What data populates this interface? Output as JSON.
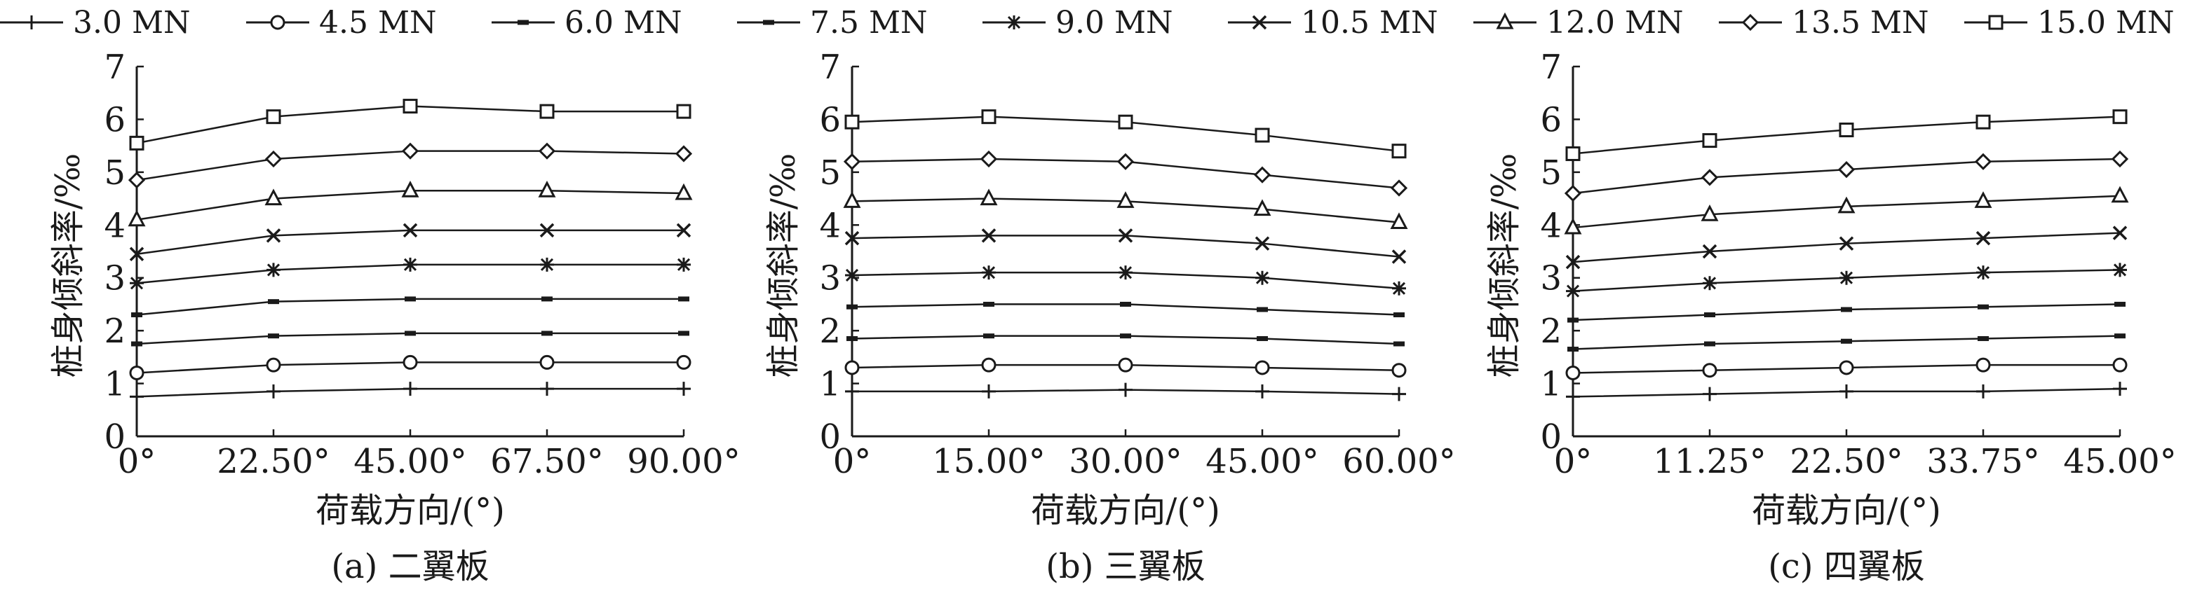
{
  "legend": {
    "entries": [
      {
        "name": "3.0 MN",
        "marker": "plus"
      },
      {
        "name": "4.5 MN",
        "marker": "circle"
      },
      {
        "name": "6.0 MN",
        "marker": "dash"
      },
      {
        "name": "7.5 MN",
        "marker": "dash"
      },
      {
        "name": "9.0 MN",
        "marker": "asterisk"
      },
      {
        "name": "10.5 MN",
        "marker": "cross"
      },
      {
        "name": "12.0 MN",
        "marker": "triangle"
      },
      {
        "name": "13.5 MN",
        "marker": "diamond"
      },
      {
        "name": "15.0 MN",
        "marker": "square"
      }
    ]
  },
  "chart_data": [
    {
      "type": "line",
      "caption": "(a) 二翼板",
      "xlabel": "荷载方向/(°)",
      "ylabel": "桩身倾斜率/‰",
      "categories": [
        "0°",
        "22.50°",
        "45.00°",
        "67.50°",
        "90.00°"
      ],
      "x": [
        0,
        22.5,
        45,
        67.5,
        90
      ],
      "xlim": [
        0,
        90
      ],
      "ylim": [
        0,
        7
      ],
      "yticks": [
        "0",
        "1",
        "2",
        "3",
        "4",
        "5",
        "6",
        "7"
      ],
      "grid": false,
      "series": [
        {
          "name": "3.0 MN",
          "values": [
            0.75,
            0.85,
            0.9,
            0.9,
            0.9
          ]
        },
        {
          "name": "4.5 MN",
          "values": [
            1.2,
            1.35,
            1.4,
            1.4,
            1.4
          ]
        },
        {
          "name": "6.0 MN",
          "values": [
            1.75,
            1.9,
            1.95,
            1.95,
            1.95
          ]
        },
        {
          "name": "7.5 MN",
          "values": [
            2.3,
            2.55,
            2.6,
            2.6,
            2.6
          ]
        },
        {
          "name": "9.0 MN",
          "values": [
            2.9,
            3.15,
            3.25,
            3.25,
            3.25
          ]
        },
        {
          "name": "10.5 MN",
          "values": [
            3.45,
            3.8,
            3.9,
            3.9,
            3.9
          ]
        },
        {
          "name": "12.0 MN",
          "values": [
            4.1,
            4.5,
            4.65,
            4.65,
            4.6
          ]
        },
        {
          "name": "13.5 MN",
          "values": [
            4.85,
            5.25,
            5.4,
            5.4,
            5.35
          ]
        },
        {
          "name": "15.0 MN",
          "values": [
            5.55,
            6.05,
            6.25,
            6.15,
            6.15
          ]
        }
      ]
    },
    {
      "type": "line",
      "caption": "(b) 三翼板",
      "xlabel": "荷载方向/(°)",
      "ylabel": "桩身倾斜率/‰",
      "categories": [
        "0°",
        "15.00°",
        "30.00°",
        "45.00°",
        "60.00°"
      ],
      "x": [
        0,
        15,
        30,
        45,
        60
      ],
      "xlim": [
        0,
        60
      ],
      "ylim": [
        0,
        7
      ],
      "yticks": [
        "0",
        "1",
        "2",
        "3",
        "4",
        "5",
        "6",
        "7"
      ],
      "grid": false,
      "series": [
        {
          "name": "3.0 MN",
          "values": [
            0.85,
            0.85,
            0.88,
            0.85,
            0.8
          ]
        },
        {
          "name": "4.5 MN",
          "values": [
            1.3,
            1.35,
            1.35,
            1.3,
            1.25
          ]
        },
        {
          "name": "6.0 MN",
          "values": [
            1.85,
            1.9,
            1.9,
            1.85,
            1.75
          ]
        },
        {
          "name": "7.5 MN",
          "values": [
            2.45,
            2.5,
            2.5,
            2.4,
            2.3
          ]
        },
        {
          "name": "9.0 MN",
          "values": [
            3.05,
            3.1,
            3.1,
            3.0,
            2.8
          ]
        },
        {
          "name": "10.5 MN",
          "values": [
            3.75,
            3.8,
            3.8,
            3.65,
            3.4
          ]
        },
        {
          "name": "12.0 MN",
          "values": [
            4.45,
            4.5,
            4.45,
            4.3,
            4.05
          ]
        },
        {
          "name": "13.5 MN",
          "values": [
            5.2,
            5.25,
            5.2,
            4.95,
            4.7
          ]
        },
        {
          "name": "15.0 MN",
          "values": [
            5.95,
            6.05,
            5.95,
            5.7,
            5.4
          ]
        }
      ]
    },
    {
      "type": "line",
      "caption": "(c) 四翼板",
      "xlabel": "荷载方向/(°)",
      "ylabel": "桩身倾斜率/‰",
      "categories": [
        "0°",
        "11.25°",
        "22.50°",
        "33.75°",
        "45.00°"
      ],
      "x": [
        0,
        11.25,
        22.5,
        33.75,
        45
      ],
      "xlim": [
        0,
        45
      ],
      "ylim": [
        0,
        7
      ],
      "yticks": [
        "0",
        "1",
        "2",
        "3",
        "4",
        "5",
        "6",
        "7"
      ],
      "grid": false,
      "series": [
        {
          "name": "3.0 MN",
          "values": [
            0.75,
            0.8,
            0.85,
            0.85,
            0.9
          ]
        },
        {
          "name": "4.5 MN",
          "values": [
            1.2,
            1.25,
            1.3,
            1.35,
            1.35
          ]
        },
        {
          "name": "6.0 MN",
          "values": [
            1.65,
            1.75,
            1.8,
            1.85,
            1.9
          ]
        },
        {
          "name": "7.5 MN",
          "values": [
            2.2,
            2.3,
            2.4,
            2.45,
            2.5
          ]
        },
        {
          "name": "9.0 MN",
          "values": [
            2.75,
            2.9,
            3.0,
            3.1,
            3.15
          ]
        },
        {
          "name": "10.5 MN",
          "values": [
            3.3,
            3.5,
            3.65,
            3.75,
            3.85
          ]
        },
        {
          "name": "12.0 MN",
          "values": [
            3.95,
            4.2,
            4.35,
            4.45,
            4.55
          ]
        },
        {
          "name": "13.5 MN",
          "values": [
            4.6,
            4.9,
            5.05,
            5.2,
            5.25
          ]
        },
        {
          "name": "15.0 MN",
          "values": [
            5.35,
            5.6,
            5.8,
            5.95,
            6.05
          ]
        }
      ]
    }
  ]
}
